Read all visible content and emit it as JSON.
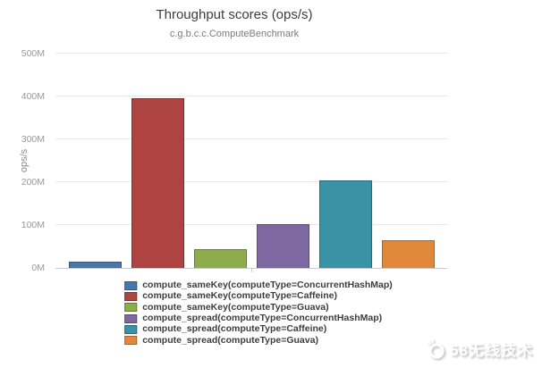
{
  "chart_data": {
    "type": "bar",
    "title": "Throughput scores (ops/s)",
    "subtitle": "c.g.b.c.c.ComputeBenchmark",
    "ylabel": "ops/s",
    "unit": "M ops/s",
    "ylim_mops": [
      0,
      500
    ],
    "ytick_step_mops": 100,
    "ytick_labels": [
      "0M",
      "100M",
      "200M",
      "300M",
      "400M",
      "500M"
    ],
    "grid": true,
    "legend_position": "bottom",
    "series": [
      {
        "name": "compute_sameKey(computeType=ConcurrentHashMap)",
        "value_mops": 15,
        "color": "#4878ab",
        "border": "#36587e"
      },
      {
        "name": "compute_sameKey(computeType=Caffeine)",
        "value_mops": 395,
        "color": "#ae4442",
        "border": "#7e302f"
      },
      {
        "name": "compute_sameKey(computeType=Guava)",
        "value_mops": 43,
        "color": "#8dac4b",
        "border": "#667d34"
      },
      {
        "name": "compute_spread(computeType=ConcurrentHashMap)",
        "value_mops": 103,
        "color": "#7e68a2",
        "border": "#5a4a75"
      },
      {
        "name": "compute_spread(computeType=Caffeine)",
        "value_mops": 205,
        "color": "#3a92a5",
        "border": "#296a78"
      },
      {
        "name": "compute_spread(computeType=Guava)",
        "value_mops": 64,
        "color": "#e1883c",
        "border": "#a8642a"
      }
    ]
  },
  "watermark": {
    "text": "58无线技术"
  }
}
